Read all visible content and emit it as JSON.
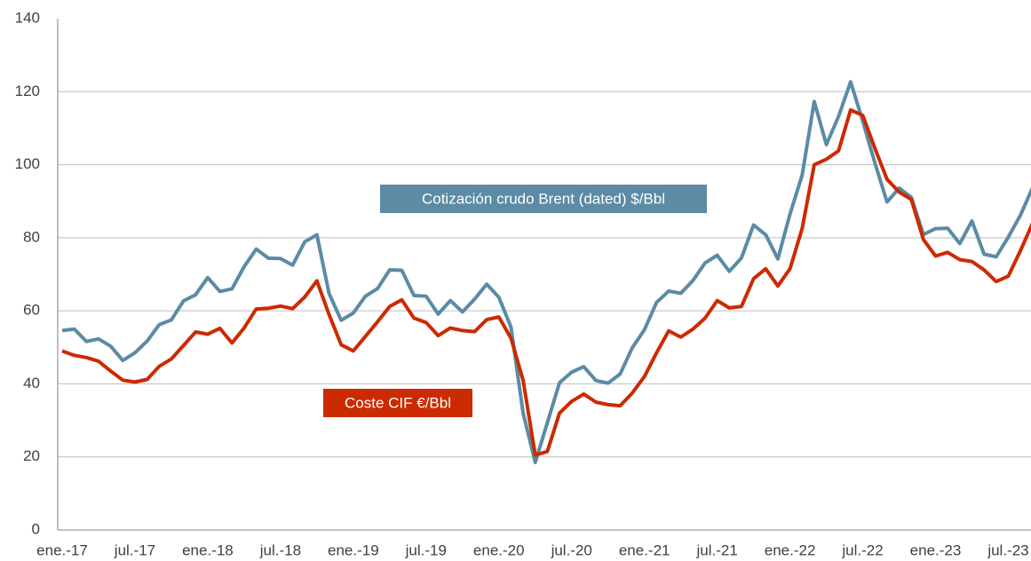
{
  "chart_data": {
    "type": "line",
    "categories": [
      "ene.-17",
      null,
      null,
      null,
      null,
      null,
      "jul.-17",
      null,
      null,
      null,
      null,
      null,
      "ene.-18",
      null,
      null,
      null,
      null,
      null,
      "jul.-18",
      null,
      null,
      null,
      null,
      null,
      "ene.-19",
      null,
      null,
      null,
      null,
      null,
      "jul.-19",
      null,
      null,
      null,
      null,
      null,
      "ene.-20",
      null,
      null,
      null,
      null,
      null,
      "jul.-20",
      null,
      null,
      null,
      null,
      null,
      "ene.-21",
      null,
      null,
      null,
      null,
      null,
      "jul.-21",
      null,
      null,
      null,
      null,
      null,
      "ene.-22",
      null,
      null,
      null,
      null,
      null,
      "jul.-22",
      null,
      null,
      null,
      null,
      null,
      "ene.-23",
      null,
      null,
      null,
      null,
      null,
      "jul.-23",
      null,
      null
    ],
    "series": [
      {
        "name": "Cotización crudo Brent (dated) $/Bbl",
        "color": "#5b8ba5",
        "values": [
          54.6,
          55,
          51.6,
          52.3,
          50.3,
          46.4,
          48.5,
          51.7,
          56.2,
          57.5,
          62.7,
          64.4,
          69.1,
          65.3,
          66,
          72.1,
          76.9,
          74.4,
          74.3,
          72.5,
          78.9,
          80.8,
          64.8,
          57.4,
          59.4,
          64,
          66.1,
          71.2,
          71.1,
          64.2,
          64,
          59.1,
          62.8,
          59.7,
          63.2,
          67.3,
          63.7,
          55.5,
          32,
          18.5,
          29.4,
          40.3,
          43.2,
          44.7,
          40.9,
          40.2,
          42.7,
          49.9,
          54.8,
          62.3,
          65.4,
          64.8,
          68.3,
          73.1,
          75.2,
          70.8,
          74.5,
          83.5,
          80.8,
          74.2,
          86.5,
          97.1,
          117.3,
          105.5,
          113.2,
          122.7,
          111.9,
          100.5,
          89.8,
          93.6,
          91.1,
          80.9,
          82.5,
          82.6,
          78.4,
          84.6,
          75.5,
          74.8,
          80.2,
          86.2,
          93.7
        ]
      },
      {
        "name": "Coste CIF €/Bbl",
        "color": "#cc2a00",
        "values": [
          49,
          47.8,
          47.2,
          46.2,
          43.5,
          41,
          40.5,
          41.2,
          44.8,
          46.8,
          50.5,
          54.2,
          53.6,
          55.2,
          51.2,
          55.3,
          60.5,
          60.7,
          61.3,
          60.6,
          63.8,
          68.2,
          59,
          50.7,
          49,
          53,
          57,
          61.2,
          63,
          58,
          56.8,
          53.2,
          55.3,
          54.6,
          54.3,
          57.6,
          58.3,
          52.5,
          41,
          20.5,
          21.5,
          32,
          35.2,
          37.2,
          35,
          34.3,
          34,
          37.5,
          42,
          48.5,
          54.5,
          52.8,
          55,
          58,
          62.8,
          60.8,
          61.2,
          68.8,
          71.5,
          66.8,
          71.5,
          82.5,
          100,
          101.5,
          103.8,
          115,
          113.5,
          104.5,
          96,
          92.5,
          90.5,
          79.5,
          75,
          76,
          74,
          73.5,
          71.2,
          68,
          69.5,
          76.5,
          84
        ]
      }
    ],
    "ylim": [
      0,
      140
    ],
    "yticks": [
      0,
      20,
      40,
      60,
      80,
      100,
      120,
      140
    ],
    "grid": true
  }
}
